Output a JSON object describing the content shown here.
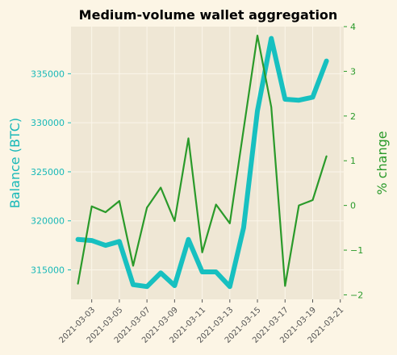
{
  "chart_data": {
    "type": "line",
    "title": "Medium-volume wallet aggregation",
    "ylabel_left": "Balance (BTC)",
    "ylabel_right": "% change",
    "x": [
      "2021-03-02",
      "2021-03-03",
      "2021-03-04",
      "2021-03-05",
      "2021-03-06",
      "2021-03-07",
      "2021-03-08",
      "2021-03-09",
      "2021-03-10",
      "2021-03-11",
      "2021-03-12",
      "2021-03-13",
      "2021-03-14",
      "2021-03-15",
      "2021-03-16",
      "2021-03-17",
      "2021-03-18",
      "2021-03-19",
      "2021-03-20"
    ],
    "x_ticks": [
      "2021-03-03",
      "2021-03-05",
      "2021-03-07",
      "2021-03-09",
      "2021-03-11",
      "2021-03-13",
      "2021-03-15",
      "2021-03-17",
      "2021-03-19",
      "2021-03-21"
    ],
    "xlim": [
      "2021-03-01T12:00",
      "2021-03-21T06:00"
    ],
    "ylim_left": [
      312000,
      339800
    ],
    "ylim_right": [
      -2.1,
      4.0
    ],
    "yticks_left": [
      315000,
      320000,
      325000,
      330000,
      335000
    ],
    "yticks_right": [
      -2,
      -1,
      0,
      1,
      2,
      3,
      4
    ],
    "grid": true,
    "series": [
      {
        "axis": "left",
        "color": "#17c0c0",
        "values": [
          318100,
          318000,
          317500,
          317900,
          313500,
          313300,
          314700,
          313400,
          318100,
          314800,
          314800,
          313300,
          319300,
          331200,
          338600,
          332400,
          332300,
          332600,
          336300
        ]
      },
      {
        "axis": "right",
        "color": "#2a9a2a",
        "values": [
          -1.75,
          -0.02,
          -0.15,
          0.1,
          -1.35,
          -0.05,
          0.4,
          -0.35,
          1.5,
          -1.05,
          0.02,
          -0.4,
          1.7,
          3.8,
          2.2,
          -1.8,
          0.0,
          0.12,
          1.1
        ]
      }
    ]
  }
}
